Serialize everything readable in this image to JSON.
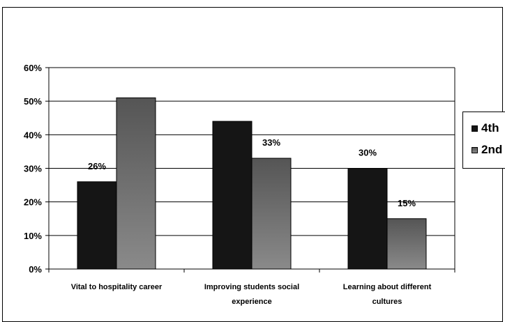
{
  "colors": {
    "series_4th": "#151515",
    "series_2nd_top": "#555555",
    "series_2nd_bottom": "#8a8a8a",
    "plot_bg": "#ffffff",
    "grid": "#000000"
  },
  "chart_data": {
    "type": "bar",
    "categories": [
      [
        "Vital to hospitality career"
      ],
      [
        "Improving students social",
        "experience"
      ],
      [
        "Learning about different",
        "cultures"
      ]
    ],
    "series": [
      {
        "name": "4th",
        "values": [
          26,
          44,
          30
        ],
        "labels": [
          "26%",
          "",
          "30%"
        ]
      },
      {
        "name": "2nd",
        "values": [
          51,
          33,
          15
        ],
        "labels": [
          "",
          "33%",
          "15%"
        ]
      }
    ],
    "y_ticks": [
      "0%",
      "10%",
      "20%",
      "30%",
      "40%",
      "50%",
      "60%"
    ],
    "ylim": [
      0,
      60
    ],
    "grid": true,
    "legend_position": "right"
  }
}
